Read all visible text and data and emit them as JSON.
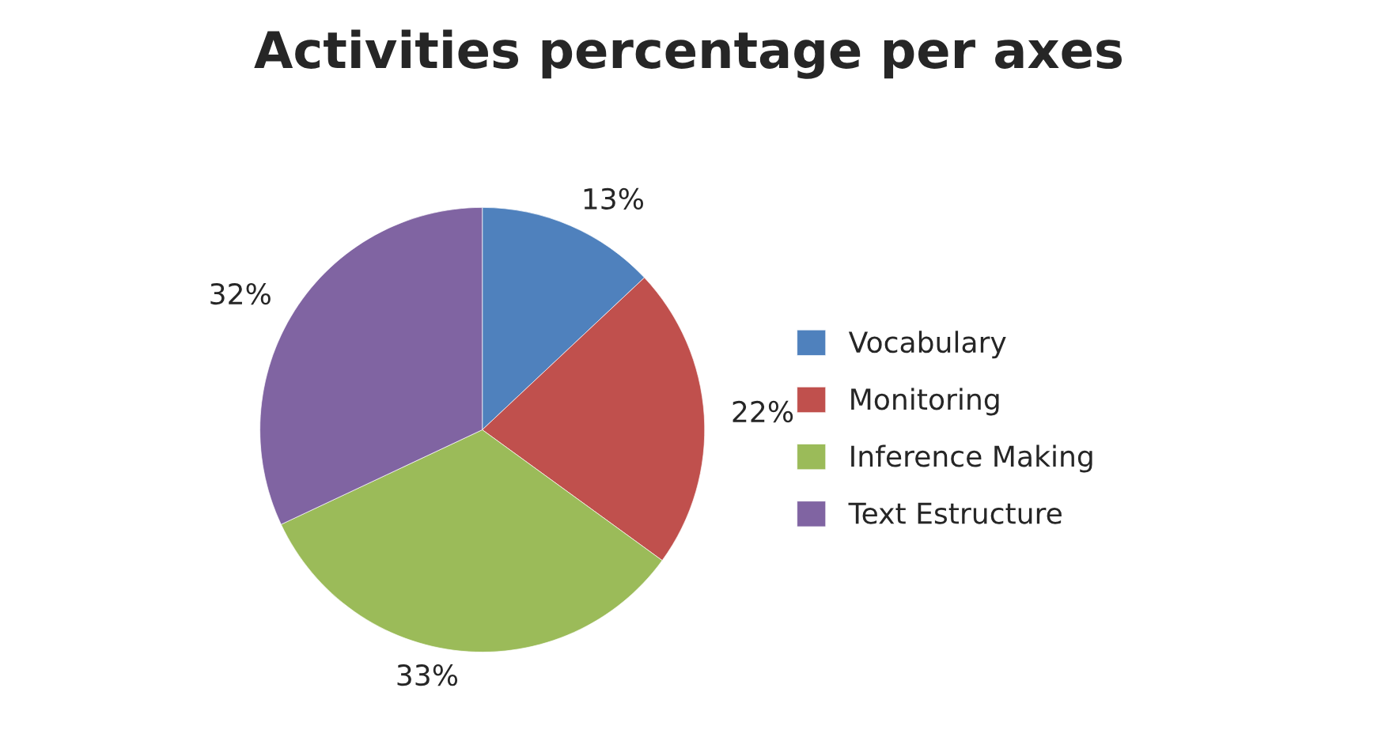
{
  "chart_data": {
    "type": "pie",
    "title": "Activities percentage per axes",
    "categories": [
      "Vocabulary",
      "Monitoring",
      "Inference Making",
      "Text Estructure"
    ],
    "values": [
      13,
      22,
      33,
      32
    ],
    "colors": [
      "#4f81bd",
      "#c0504d",
      "#9bbb59",
      "#8064a2"
    ],
    "value_labels": [
      "13%",
      "22%",
      "33%",
      "32%"
    ],
    "legend": "right"
  }
}
